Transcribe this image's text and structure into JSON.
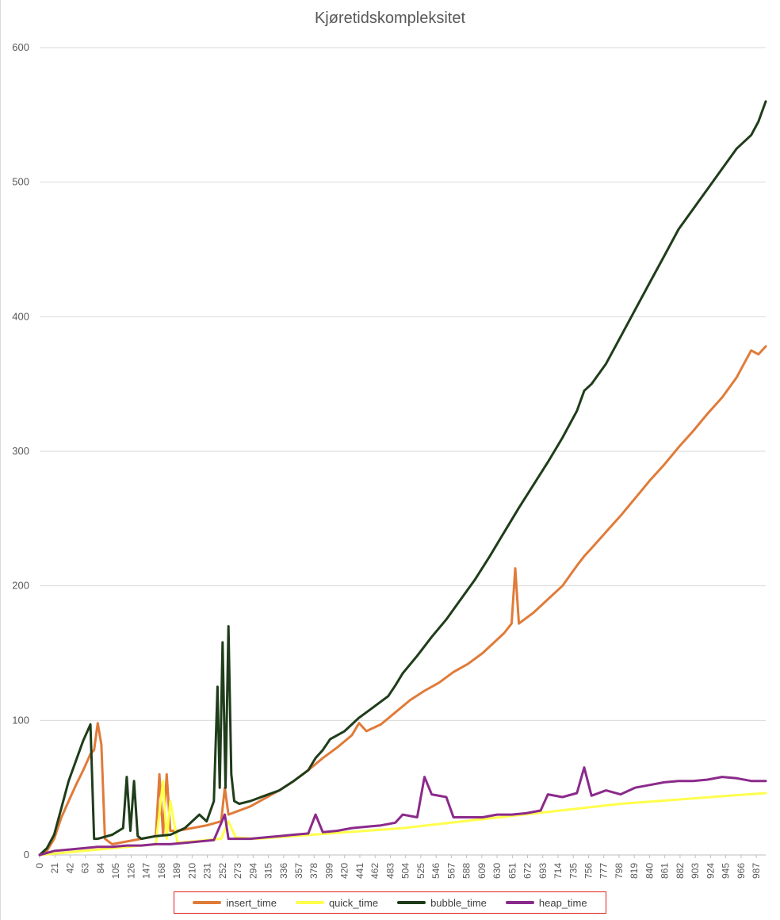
{
  "chart_data": {
    "type": "line",
    "title": "Kjøretidskompleksitet",
    "xlabel": "",
    "ylabel": "",
    "xlim": [
      0,
      1000
    ],
    "ylim": [
      0,
      600
    ],
    "y_ticks": [
      0,
      100,
      200,
      300,
      400,
      500,
      600
    ],
    "x_ticks": [
      0,
      21,
      42,
      63,
      84,
      105,
      126,
      147,
      168,
      189,
      210,
      231,
      252,
      273,
      294,
      315,
      336,
      357,
      378,
      399,
      420,
      441,
      462,
      483,
      504,
      525,
      546,
      567,
      588,
      609,
      630,
      651,
      672,
      693,
      714,
      735,
      756,
      777,
      798,
      819,
      840,
      861,
      882,
      903,
      924,
      945,
      966,
      987
    ],
    "grid": true,
    "legend_position": "bottom",
    "series": [
      {
        "name": "insert_time",
        "color": "#e07b39",
        "x": [
          0,
          10,
          20,
          30,
          40,
          50,
          60,
          70,
          75,
          80,
          85,
          90,
          100,
          120,
          140,
          160,
          165,
          170,
          175,
          180,
          190,
          210,
          230,
          250,
          255,
          260,
          270,
          290,
          310,
          330,
          350,
          370,
          390,
          410,
          430,
          440,
          450,
          470,
          490,
          510,
          530,
          550,
          570,
          590,
          610,
          630,
          640,
          650,
          655,
          660,
          680,
          700,
          720,
          740,
          750,
          760,
          780,
          800,
          820,
          840,
          860,
          880,
          900,
          920,
          940,
          960,
          970,
          980,
          990,
          1000
        ],
        "y": [
          0,
          3,
          12,
          28,
          40,
          52,
          63,
          75,
          78,
          98,
          82,
          12,
          8,
          10,
          12,
          14,
          60,
          15,
          60,
          18,
          18,
          20,
          22,
          25,
          50,
          30,
          32,
          36,
          42,
          48,
          55,
          63,
          72,
          80,
          89,
          98,
          92,
          97,
          106,
          115,
          122,
          128,
          136,
          142,
          150,
          160,
          165,
          172,
          213,
          172,
          180,
          190,
          200,
          215,
          222,
          228,
          240,
          252,
          265,
          278,
          290,
          303,
          315,
          328,
          340,
          355,
          365,
          375,
          372,
          378
        ]
      },
      {
        "name": "quick_time",
        "color": "#ffff4d",
        "x": [
          0,
          20,
          40,
          60,
          80,
          100,
          120,
          140,
          160,
          170,
          175,
          180,
          190,
          210,
          230,
          250,
          260,
          270,
          300,
          350,
          400,
          450,
          500,
          550,
          600,
          650,
          700,
          750,
          800,
          850,
          900,
          950,
          1000
        ],
        "y": [
          0,
          1,
          2,
          3,
          4,
          5,
          6,
          7,
          8,
          55,
          12,
          40,
          9,
          10,
          11,
          12,
          25,
          13,
          12,
          14,
          16,
          18,
          20,
          23,
          26,
          29,
          32,
          35,
          38,
          40,
          42,
          44,
          46
        ]
      },
      {
        "name": "bubble_time",
        "color": "#1f3d1a",
        "x": [
          0,
          10,
          20,
          30,
          40,
          50,
          60,
          70,
          75,
          80,
          100,
          115,
          120,
          125,
          130,
          135,
          140,
          160,
          180,
          200,
          220,
          230,
          240,
          245,
          248,
          252,
          256,
          260,
          264,
          268,
          275,
          290,
          310,
          330,
          350,
          370,
          380,
          390,
          400,
          420,
          440,
          460,
          480,
          490,
          500,
          520,
          540,
          560,
          580,
          600,
          620,
          640,
          660,
          680,
          700,
          720,
          740,
          750,
          760,
          780,
          800,
          820,
          840,
          860,
          880,
          900,
          920,
          940,
          960,
          980,
          990,
          1000
        ],
        "y": [
          0,
          5,
          15,
          35,
          55,
          70,
          85,
          97,
          12,
          12,
          15,
          20,
          58,
          18,
          55,
          14,
          12,
          14,
          15,
          20,
          30,
          25,
          40,
          125,
          50,
          158,
          50,
          170,
          60,
          40,
          38,
          40,
          44,
          48,
          55,
          63,
          72,
          78,
          86,
          92,
          102,
          110,
          118,
          126,
          135,
          148,
          162,
          175,
          190,
          205,
          222,
          240,
          258,
          275,
          292,
          310,
          330,
          345,
          350,
          365,
          385,
          405,
          425,
          445,
          465,
          480,
          495,
          510,
          525,
          535,
          545,
          560
        ]
      },
      {
        "name": "heap_time",
        "color": "#8b2a8b",
        "x": [
          0,
          20,
          40,
          60,
          80,
          100,
          120,
          140,
          160,
          180,
          200,
          220,
          240,
          255,
          260,
          270,
          290,
          310,
          330,
          350,
          370,
          380,
          390,
          410,
          430,
          450,
          470,
          490,
          500,
          520,
          530,
          540,
          560,
          570,
          590,
          610,
          630,
          650,
          670,
          690,
          700,
          720,
          740,
          750,
          760,
          780,
          800,
          820,
          840,
          860,
          880,
          900,
          920,
          940,
          960,
          980,
          1000
        ],
        "y": [
          0,
          3,
          4,
          5,
          6,
          6,
          7,
          7,
          8,
          8,
          9,
          10,
          11,
          30,
          12,
          12,
          12,
          13,
          14,
          15,
          16,
          30,
          17,
          18,
          20,
          21,
          22,
          24,
          30,
          28,
          58,
          45,
          43,
          28,
          28,
          28,
          30,
          30,
          31,
          33,
          45,
          43,
          46,
          65,
          44,
          48,
          45,
          50,
          52,
          54,
          55,
          55,
          56,
          58,
          57,
          55,
          55
        ]
      }
    ]
  }
}
